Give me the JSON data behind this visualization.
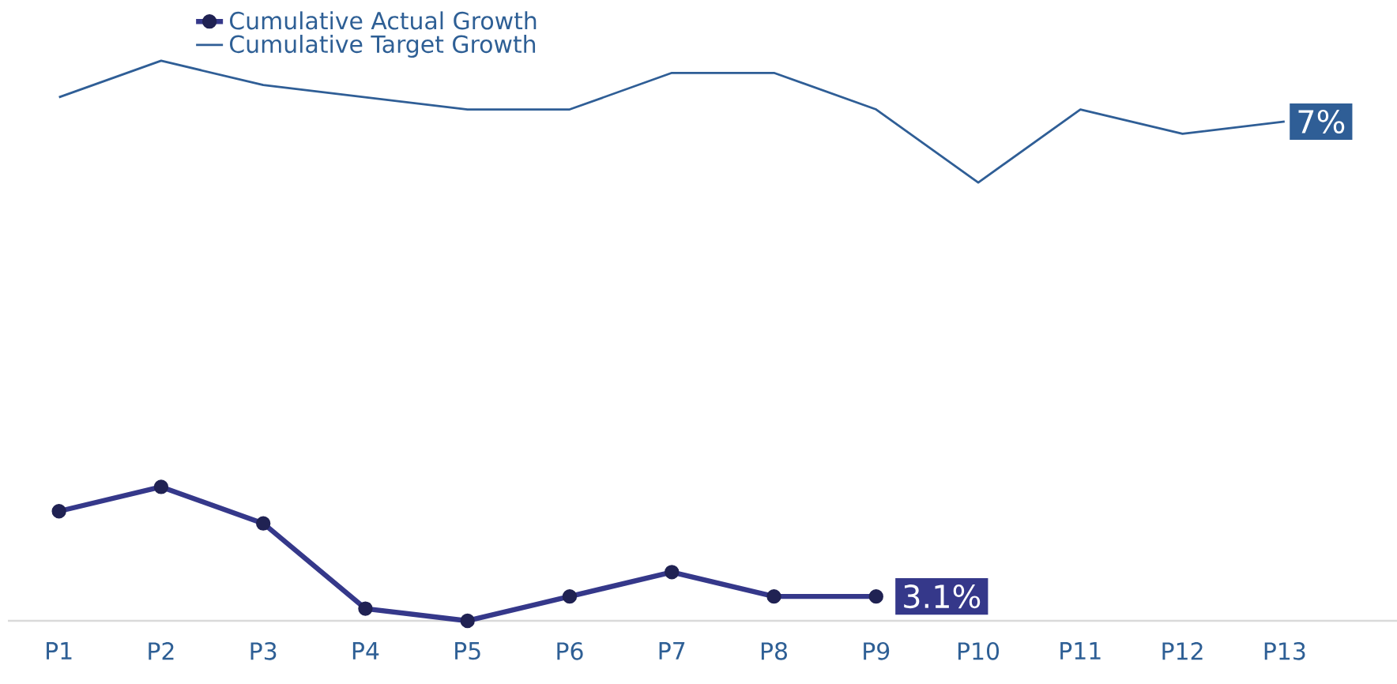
{
  "chart_data": {
    "type": "line",
    "legend": "top left",
    "tick_labels": "x",
    "categories": [
      "P1",
      "P2",
      "P3",
      "P4",
      "P5",
      "P6",
      "P7",
      "P8",
      "P9",
      "P10",
      "P11",
      "P12",
      "P13"
    ],
    "series": [
      {
        "name": "Cumulative Actual Growth",
        "color": "#35388a",
        "marker": "circle",
        "values": [
          3.8,
          4.0,
          3.7,
          3.0,
          2.9,
          3.1,
          3.3,
          3.1,
          3.1,
          null,
          null,
          null,
          null
        ],
        "value_labels": [
          null,
          null,
          null,
          null,
          null,
          null,
          null,
          null,
          "3.1%",
          null,
          null,
          null,
          null
        ]
      },
      {
        "name": "Cumulative Target Growth",
        "color": "#2f5e96",
        "marker": "none",
        "values": [
          7.2,
          7.5,
          7.3,
          7.2,
          7.1,
          7.1,
          7.4,
          7.4,
          7.1,
          6.5,
          7.1,
          6.9,
          7.0
        ],
        "value_labels": [
          null,
          null,
          null,
          null,
          null,
          null,
          null,
          null,
          null,
          null,
          null,
          null,
          "7%"
        ]
      }
    ]
  }
}
